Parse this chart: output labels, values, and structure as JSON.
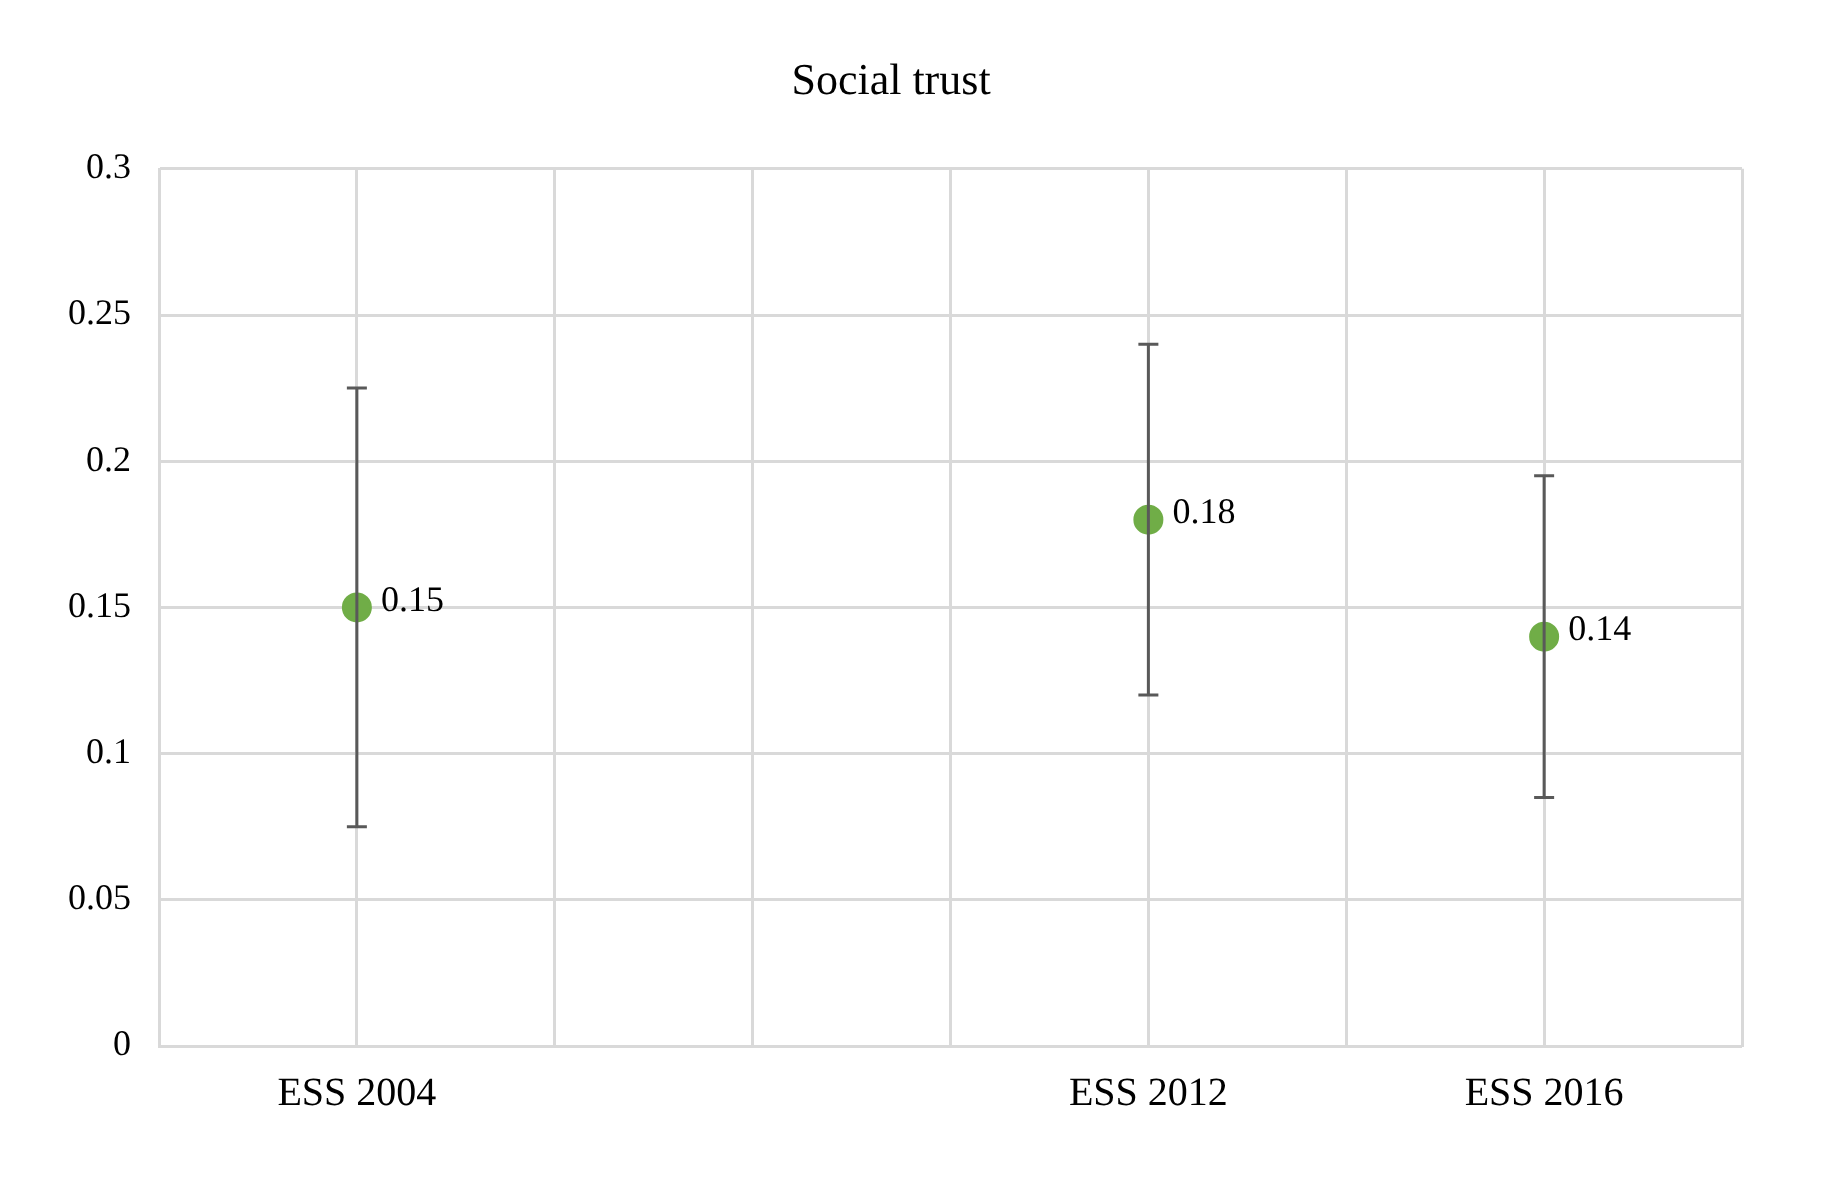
{
  "chart_data": {
    "type": "scatter",
    "title": "Social trust",
    "categories": [
      null,
      "ESS 2004",
      null,
      null,
      null,
      "ESS 2012",
      null,
      "ESS 2016",
      null
    ],
    "ylim": [
      0,
      0.3
    ],
    "yticks": [
      0,
      0.05,
      0.1,
      0.15,
      0.2,
      0.25,
      0.3
    ],
    "values": [
      null,
      0.15,
      null,
      null,
      null,
      0.18,
      null,
      0.14,
      null
    ],
    "errors": [
      null,
      [
        0.075,
        0.225
      ],
      null,
      null,
      null,
      [
        0.12,
        0.24
      ],
      null,
      [
        0.085,
        0.195
      ],
      null
    ],
    "color": "#70ad47",
    "marker": "circle",
    "grid": true,
    "data_labels": true
  }
}
